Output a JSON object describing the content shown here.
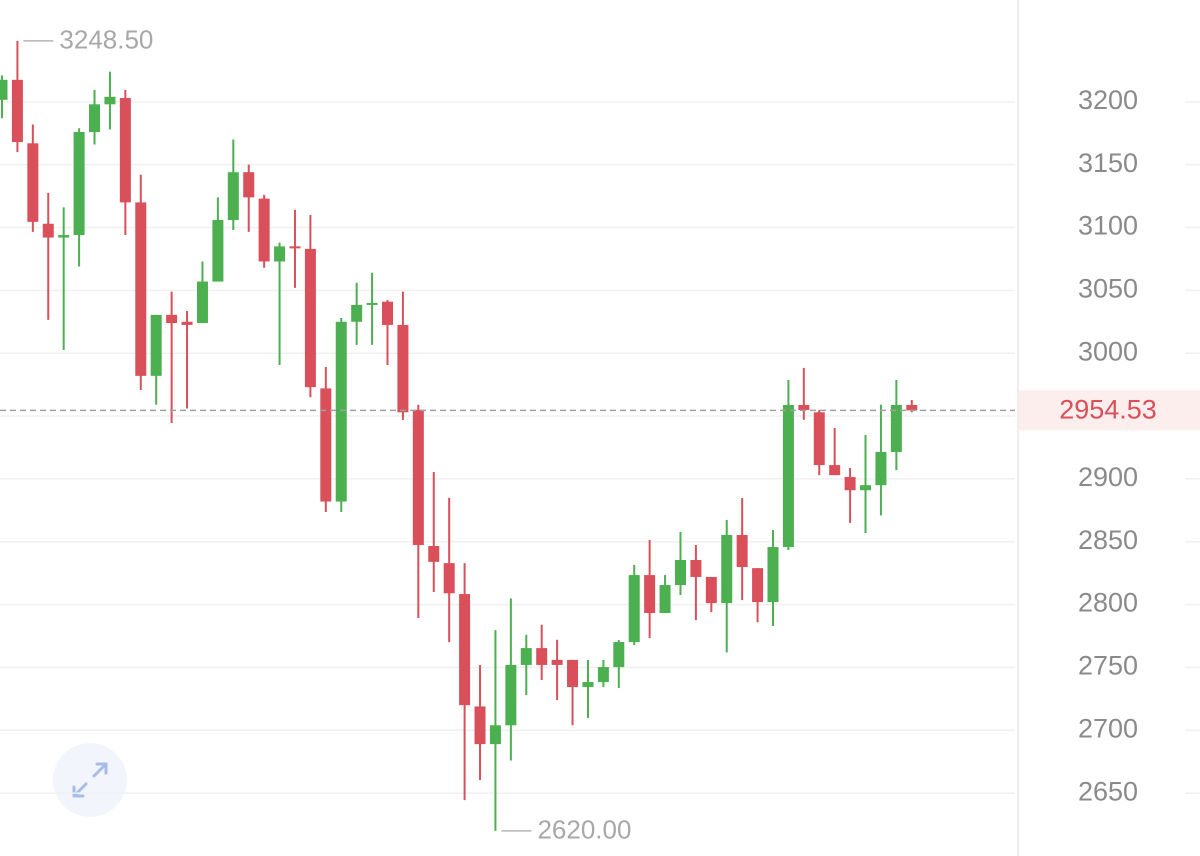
{
  "chart_data": {
    "type": "candlestick",
    "up_color": "#4caf50",
    "down_color": "#d9505a",
    "ylim": [
      2600,
      3281
    ],
    "yticks": [
      2650,
      2700,
      2750,
      2800,
      2850,
      2900,
      2950,
      3000,
      3050,
      3100,
      3150,
      3200
    ],
    "grid": true,
    "open": [
      3201.6,
      3217.5,
      3167,
      3103,
      3092,
      3094,
      3176,
      3198,
      3203,
      3120,
      2982,
      3030.5,
      3025,
      3024,
      3057,
      3106,
      3144,
      3123,
      3073,
      3085,
      3083,
      2972,
      2882,
      3025,
      3038.4,
      3041,
      3022.5,
      2955,
      2846.6,
      2833,
      2808.4,
      2719,
      2689,
      2704,
      2752,
      2765.4,
      2756,
      2756,
      2734.4,
      2738.4,
      2750.3,
      2770.2,
      2823.5,
      2793.3,
      2815.6,
      2835.5,
      2822,
      2801.2,
      2855.4,
      2829,
      2802,
      2845.8,
      2958.8,
      2953,
      2911,
      2901.5,
      2891,
      2895,
      2921.4,
      2958.8
    ],
    "high": [
      3221,
      3248.5,
      3182,
      3127.6,
      3116,
      3179,
      3209.5,
      3224,
      3209.5,
      3142,
      3030.5,
      3049,
      3033.6,
      3073,
      3124,
      3170,
      3150,
      3126,
      3088,
      3114,
      3110,
      2989,
      3028,
      3056,
      3064,
      3042.4,
      3049,
      2959,
      2905.5,
      2885,
      2833,
      2752,
      2779.7,
      2805,
      2776,
      2784,
      2772,
      2756,
      2756,
      2756,
      2771.8,
      2831.5,
      2851.4,
      2823.5,
      2857.8,
      2847.4,
      2822,
      2867.3,
      2884.8,
      2829,
      2859.3,
      2978.7,
      2988.3,
      2954.8,
      2940.5,
      2908.7,
      2935,
      2959,
      2978.7,
      2962.8
    ],
    "low": [
      3187,
      3160,
      3096.5,
      3026.5,
      3002.6,
      3069,
      3166,
      3178,
      3094,
      2970.7,
      2959,
      2944.5,
      2956,
      3024,
      3057,
      3098,
      3096.5,
      3068,
      2990.6,
      3052,
      2965,
      2873.7,
      2873.7,
      3006.6,
      3006.6,
      2990.6,
      2947,
      2789.3,
      2810,
      2770.2,
      2644.5,
      2660.4,
      2620,
      2676,
      2728,
      2740,
      2724,
      2704,
      2709.7,
      2734.4,
      2733.6,
      2767.8,
      2773.4,
      2793.3,
      2807.6,
      2787.7,
      2794,
      2762,
      2803.6,
      2786,
      2783,
      2843.4,
      2947,
      2903,
      2903,
      2865,
      2857,
      2871,
      2907,
      2953
    ],
    "close": [
      3217.5,
      3168,
      3104.5,
      3092,
      3094,
      3176,
      3198,
      3204,
      3120,
      2982,
      3030.5,
      3024,
      3022.5,
      3057,
      3106,
      3144,
      3124,
      3073,
      3085,
      3084,
      2973,
      2882,
      3025,
      3038.4,
      3040,
      3022.5,
      2953,
      2847.4,
      2834,
      2809,
      2720,
      2689,
      2704,
      2752,
      2765.4,
      2752,
      2752,
      2734.4,
      2738.4,
      2750.3,
      2770.2,
      2823.5,
      2793.3,
      2815.6,
      2835.5,
      2822,
      2801.2,
      2855.4,
      2829.9,
      2802,
      2845.8,
      2958.8,
      2954.8,
      2911,
      2903,
      2891,
      2895,
      2921.4,
      2958.8,
      2954.53
    ],
    "max_label": {
      "value": 3248.5,
      "label": "3248.50"
    },
    "min_label": {
      "value": 2620,
      "label": "2620.00"
    },
    "last_price": {
      "value": 2954.53,
      "label": "2954.53"
    }
  }
}
